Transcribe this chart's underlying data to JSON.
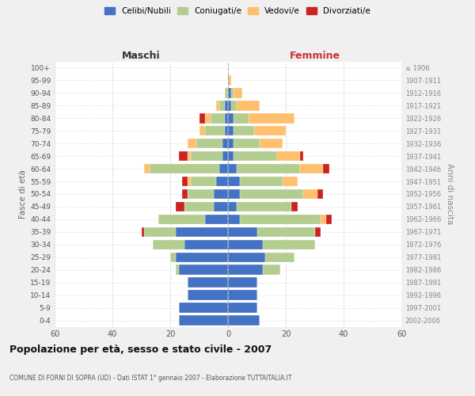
{
  "age_groups": [
    "100+",
    "95-99",
    "90-94",
    "85-89",
    "80-84",
    "75-79",
    "70-74",
    "65-69",
    "60-64",
    "55-59",
    "50-54",
    "45-49",
    "40-44",
    "35-39",
    "30-34",
    "25-29",
    "20-24",
    "15-19",
    "10-14",
    "5-9",
    "0-4"
  ],
  "birth_years": [
    "≤ 1906",
    "1907-1911",
    "1912-1916",
    "1917-1921",
    "1922-1926",
    "1927-1931",
    "1932-1936",
    "1937-1941",
    "1942-1946",
    "1947-1951",
    "1952-1956",
    "1957-1961",
    "1962-1966",
    "1967-1971",
    "1972-1976",
    "1977-1981",
    "1982-1986",
    "1987-1991",
    "1992-1996",
    "1997-2001",
    "2002-2006"
  ],
  "colors": {
    "celibi": "#4472c4",
    "coniugati": "#b3cc8f",
    "vedovi": "#ffc06e",
    "divorziati": "#cc2222"
  },
  "male": {
    "celibi": [
      0,
      0,
      0,
      1,
      1,
      1,
      2,
      2,
      3,
      4,
      5,
      5,
      8,
      18,
      15,
      18,
      17,
      14,
      14,
      17,
      17
    ],
    "coniugati": [
      0,
      0,
      1,
      2,
      5,
      7,
      9,
      11,
      24,
      9,
      9,
      10,
      16,
      11,
      11,
      2,
      1,
      0,
      0,
      0,
      0
    ],
    "vedovi": [
      0,
      0,
      0,
      1,
      2,
      2,
      3,
      1,
      2,
      1,
      0,
      0,
      0,
      0,
      0,
      0,
      0,
      0,
      0,
      0,
      0
    ],
    "divorziati": [
      0,
      0,
      0,
      0,
      2,
      0,
      0,
      3,
      0,
      2,
      2,
      3,
      0,
      1,
      0,
      0,
      0,
      0,
      0,
      0,
      0
    ]
  },
  "female": {
    "nubili": [
      0,
      0,
      1,
      1,
      2,
      2,
      2,
      2,
      3,
      4,
      4,
      3,
      4,
      10,
      12,
      13,
      12,
      10,
      10,
      10,
      11
    ],
    "coniugate": [
      0,
      0,
      1,
      2,
      5,
      7,
      9,
      15,
      22,
      15,
      22,
      19,
      28,
      20,
      18,
      10,
      6,
      0,
      0,
      0,
      0
    ],
    "vedove": [
      0,
      1,
      3,
      8,
      16,
      11,
      8,
      8,
      8,
      5,
      5,
      0,
      2,
      0,
      0,
      0,
      0,
      0,
      0,
      0,
      0
    ],
    "divorziate": [
      0,
      0,
      0,
      0,
      0,
      0,
      0,
      1,
      2,
      0,
      2,
      2,
      2,
      2,
      0,
      0,
      0,
      0,
      0,
      0,
      0
    ]
  },
  "xlim": 60,
  "title": "Popolazione per età, sesso e stato civile - 2007",
  "subtitle": "COMUNE DI FORNI DI SOPRA (UD) - Dati ISTAT 1° gennaio 2007 - Elaborazione TUTTAITALIA.IT",
  "legend_labels": [
    "Celibi/Nubili",
    "Coniugati/e",
    "Vedovi/e",
    "Divorziati/e"
  ],
  "header_left": "Maschi",
  "header_right": "Femmine",
  "ylabel_left": "Fasce di età",
  "ylabel_right": "Anni di nascita",
  "background_color": "#f0f0f0",
  "plot_bg_color": "#ffffff",
  "grid_color": "#cccccc"
}
